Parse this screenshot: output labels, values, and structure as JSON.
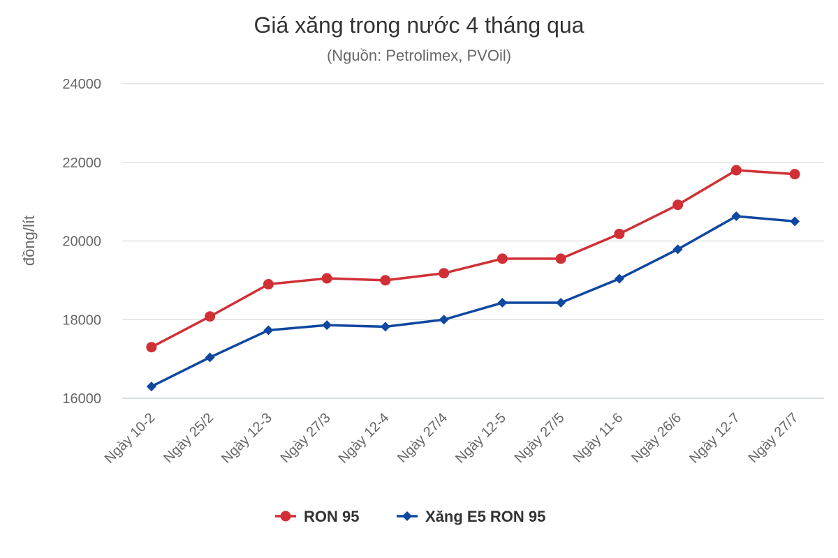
{
  "chart_data": {
    "type": "line",
    "title": "Giá xăng trong nước 4 tháng qua",
    "subtitle": "(Nguồn: Petrolimex, PVOil)",
    "ylabel": "đồng/lít",
    "xlabel": "",
    "ylim": [
      16000,
      24000
    ],
    "yticks": [
      16000,
      18000,
      20000,
      22000,
      24000
    ],
    "categories": [
      "Ngày 10-2",
      "Ngày 25/2",
      "Ngày 12-3",
      "Ngày 27/3",
      "Ngày 12-4",
      "Ngày 27/4",
      "Ngày 12-5",
      "Ngày 27/5",
      "Ngày 11-6",
      "Ngày 26/6",
      "Ngày 12-7",
      "Ngày 27/7"
    ],
    "grid": true,
    "legend_position": "bottom-center",
    "series": [
      {
        "name": "RON 95",
        "color": "#d03035",
        "marker": "circle",
        "values": [
          17300,
          18080,
          18900,
          19050,
          19000,
          19180,
          19550,
          19550,
          20180,
          20920,
          21800,
          21700
        ]
      },
      {
        "name": "Xăng E5 RON 95",
        "color": "#0f47a1",
        "marker": "diamond",
        "values": [
          16300,
          17040,
          17730,
          17860,
          17820,
          18000,
          18430,
          18430,
          19040,
          19790,
          20630,
          20500
        ]
      }
    ]
  }
}
